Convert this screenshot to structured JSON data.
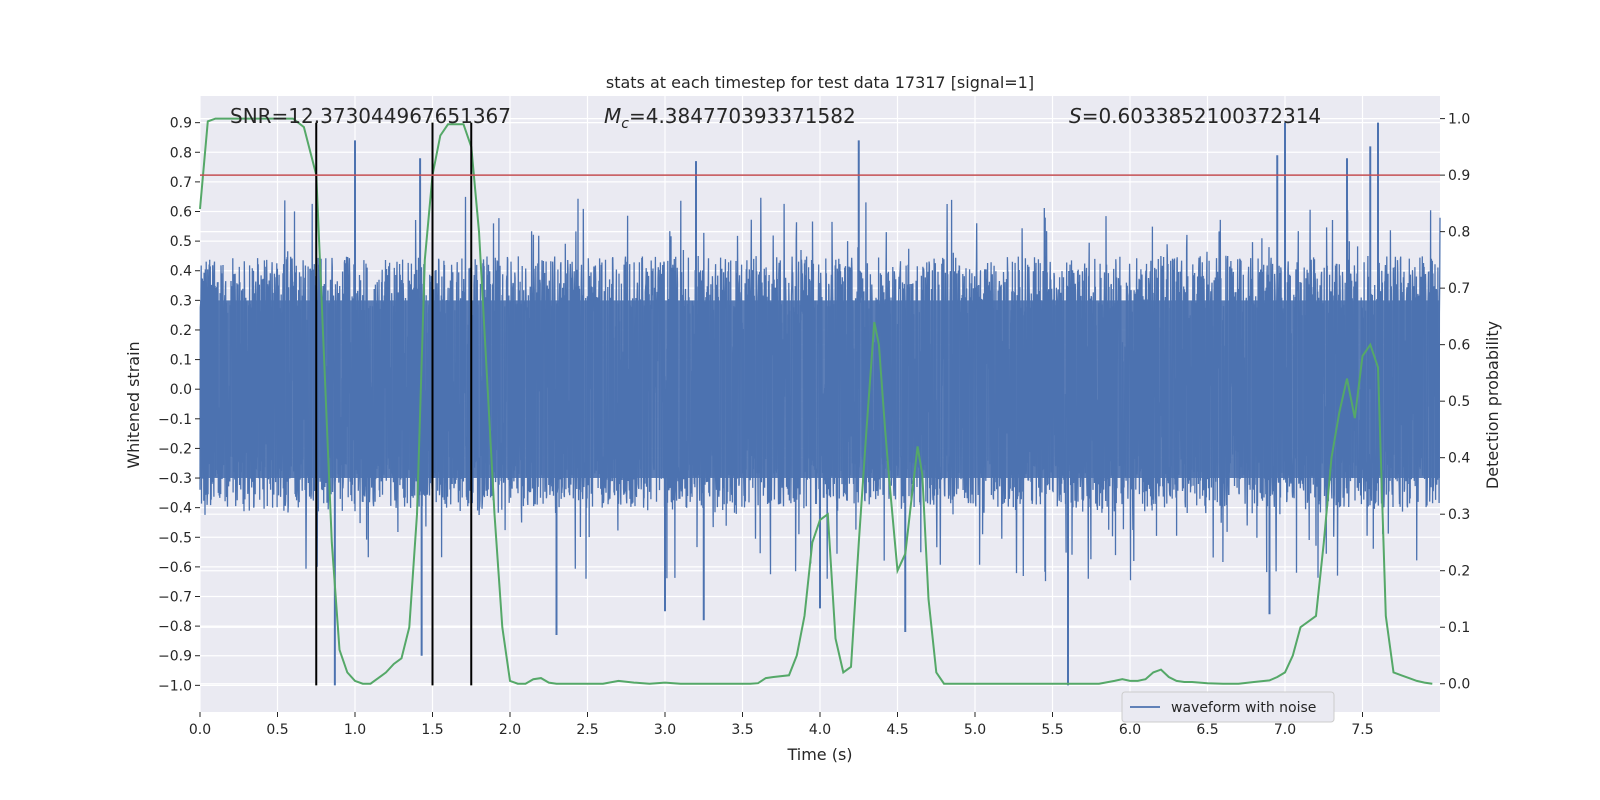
{
  "chart_data": {
    "type": "line",
    "title": "stats at each timestep for test data 17317 [signal=1]",
    "xlabel": "Time (s)",
    "ylabel": "Whitened strain",
    "ylabel_right": "Detection probability",
    "xlim": [
      0.0,
      8.0
    ],
    "ylim": [
      -1.09,
      0.99
    ],
    "ylim_right": [
      -0.05,
      1.04
    ],
    "xticks": [
      "0.0",
      "0.5",
      "1.0",
      "1.5",
      "2.0",
      "2.5",
      "3.0",
      "3.5",
      "4.0",
      "4.5",
      "5.0",
      "5.5",
      "6.0",
      "6.5",
      "7.0",
      "7.5"
    ],
    "yticks": [
      "0.9",
      "0.8",
      "0.7",
      "0.6",
      "0.5",
      "0.4",
      "0.3",
      "0.2",
      "0.1",
      "0.0",
      "−0.1",
      "−0.2",
      "−0.3",
      "−0.4",
      "−0.5",
      "−0.6",
      "−0.7",
      "−0.8",
      "−0.9",
      "−1.0"
    ],
    "yticks_right": [
      "1.0",
      "0.9",
      "0.8",
      "0.7",
      "0.6",
      "0.5",
      "0.4",
      "0.3",
      "0.2",
      "0.1",
      "0.0"
    ],
    "annotations": {
      "snr": "SNR=12.373044967651367",
      "mc_symbol": "M",
      "mc_sub": "c",
      "mc_value": "=4.384770393371582",
      "s_symbol": "S",
      "s_value": "=0.6033852100372314"
    },
    "legend": {
      "label": "waveform with noise",
      "position": "lower-right"
    },
    "grid": true,
    "threshold_right": 0.9,
    "vlines_x": [
      0.75,
      1.5,
      1.75
    ],
    "waveform": {
      "name": "waveform with noise",
      "color": "#4c72b0",
      "typical_range": [
        -0.4,
        0.45
      ],
      "spikes": [
        {
          "x": 0.87,
          "y": -1.0
        },
        {
          "x": 1.0,
          "y": 0.84
        },
        {
          "x": 1.42,
          "y": 0.78
        },
        {
          "x": 1.43,
          "y": -0.9
        },
        {
          "x": 2.3,
          "y": -0.83
        },
        {
          "x": 3.2,
          "y": 0.77
        },
        {
          "x": 3.25,
          "y": -0.78
        },
        {
          "x": 4.25,
          "y": 0.84
        },
        {
          "x": 4.55,
          "y": -0.82
        },
        {
          "x": 5.6,
          "y": -1.0
        },
        {
          "x": 6.95,
          "y": 0.79
        },
        {
          "x": 7.0,
          "y": 0.9
        },
        {
          "x": 7.55,
          "y": 0.82
        },
        {
          "x": 7.6,
          "y": 0.9
        },
        {
          "x": 7.4,
          "y": 0.78
        },
        {
          "x": 3.0,
          "y": -0.75
        },
        {
          "x": 4.0,
          "y": -0.74
        },
        {
          "x": 6.9,
          "y": -0.76
        }
      ]
    },
    "probability": {
      "color": "#55a868",
      "x": [
        0.0,
        0.05,
        0.1,
        0.2,
        0.3,
        0.4,
        0.5,
        0.6,
        0.67,
        0.75,
        0.8,
        0.85,
        0.9,
        0.95,
        1.0,
        1.05,
        1.1,
        1.15,
        1.2,
        1.25,
        1.3,
        1.35,
        1.4,
        1.45,
        1.5,
        1.55,
        1.6,
        1.65,
        1.7,
        1.75,
        1.8,
        1.85,
        1.9,
        1.95,
        2.0,
        2.05,
        2.1,
        2.15,
        2.2,
        2.25,
        2.3,
        2.4,
        2.5,
        2.6,
        2.7,
        2.8,
        2.9,
        3.0,
        3.1,
        3.2,
        3.3,
        3.4,
        3.5,
        3.55,
        3.6,
        3.65,
        3.7,
        3.8,
        3.85,
        3.9,
        3.95,
        4.0,
        4.05,
        4.1,
        4.15,
        4.2,
        4.25,
        4.3,
        4.35,
        4.38,
        4.42,
        4.45,
        4.5,
        4.55,
        4.6,
        4.63,
        4.66,
        4.7,
        4.75,
        4.8,
        4.9,
        5.0,
        5.2,
        5.4,
        5.6,
        5.8,
        5.9,
        5.95,
        6.0,
        6.05,
        6.1,
        6.15,
        6.2,
        6.25,
        6.3,
        6.35,
        6.4,
        6.5,
        6.6,
        6.7,
        6.8,
        6.9,
        6.95,
        7.0,
        7.05,
        7.1,
        7.15,
        7.2,
        7.25,
        7.3,
        7.35,
        7.4,
        7.45,
        7.5,
        7.55,
        7.6,
        7.65,
        7.7,
        7.75,
        7.8,
        7.85,
        7.9,
        7.95
      ],
      "y": [
        0.84,
        0.995,
        1.0,
        1.0,
        1.0,
        1.0,
        1.0,
        1.0,
        0.985,
        0.9,
        0.58,
        0.25,
        0.06,
        0.02,
        0.005,
        0.0,
        0.0,
        0.01,
        0.02,
        0.035,
        0.045,
        0.1,
        0.3,
        0.75,
        0.9,
        0.97,
        0.99,
        0.99,
        0.99,
        0.95,
        0.8,
        0.55,
        0.3,
        0.1,
        0.005,
        0.0,
        0.0,
        0.008,
        0.01,
        0.002,
        0.0,
        0.0,
        0.0,
        0.0,
        0.005,
        0.002,
        0.0,
        0.002,
        0.0,
        0.0,
        0.0,
        0.0,
        0.0,
        0.0,
        0.001,
        0.01,
        0.012,
        0.015,
        0.05,
        0.12,
        0.25,
        0.29,
        0.3,
        0.08,
        0.02,
        0.03,
        0.25,
        0.45,
        0.64,
        0.6,
        0.45,
        0.35,
        0.2,
        0.23,
        0.35,
        0.42,
        0.37,
        0.15,
        0.02,
        0.0,
        0.0,
        0.0,
        0.0,
        0.0,
        0.0,
        0.0,
        0.005,
        0.008,
        0.005,
        0.005,
        0.008,
        0.02,
        0.025,
        0.012,
        0.005,
        0.003,
        0.003,
        0.001,
        0.0,
        0.0,
        0.003,
        0.006,
        0.012,
        0.02,
        0.05,
        0.1,
        0.11,
        0.12,
        0.25,
        0.4,
        0.48,
        0.54,
        0.47,
        0.58,
        0.6,
        0.56,
        0.12,
        0.02,
        0.015,
        0.01,
        0.005,
        0.002,
        0.0
      ]
    }
  }
}
